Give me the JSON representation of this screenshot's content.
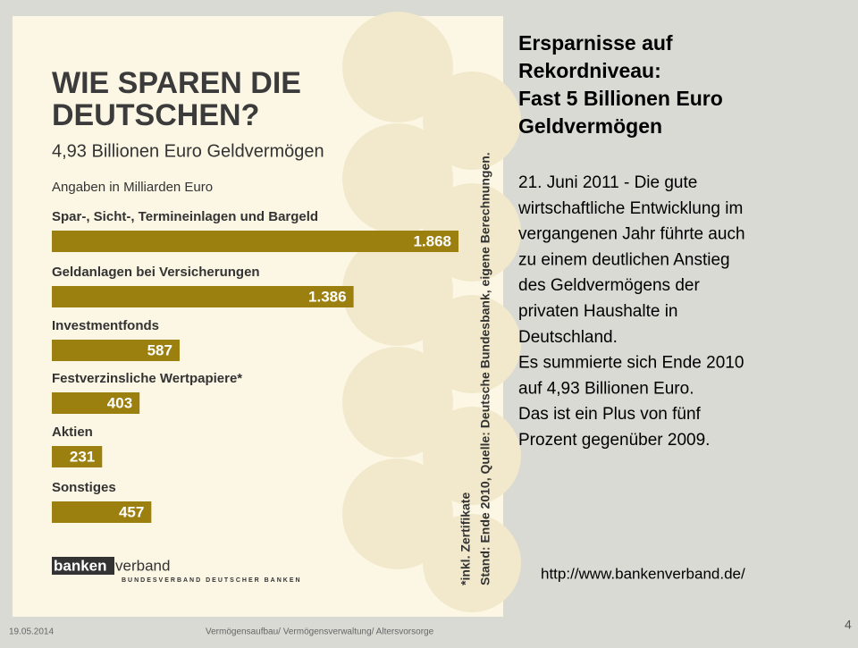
{
  "chart_data": {
    "type": "bar",
    "title": [
      "WIE SPAREN DIE",
      "DEUTSCHEN?"
    ],
    "subtitle": "4,93 Billionen Euro Geldvermögen",
    "unit_note": "Angaben in Milliarden Euro",
    "categories": [
      "Spar-, Sicht-, Termineinlagen und Bargeld",
      "Geldanlagen bei Versicherungen",
      "Investmentfonds",
      "Festverzinsliche Wertpapiere*",
      "Aktien",
      "Sonstiges"
    ],
    "values": [
      1868,
      1386,
      587,
      403,
      231,
      457
    ],
    "value_labels": [
      "1.868",
      "1.386",
      "587",
      "403",
      "231",
      "457"
    ],
    "color": "#9c800f",
    "notes": [
      "*inkl. Zertifikate",
      "Stand: Ende 2010, Quelle: Deutsche Bundesbank, eigene Berechnungen."
    ],
    "logo": {
      "bold": "banken",
      "rest": "verband",
      "tagline": "BUNDESVERBAND DEUTSCHER BANKEN"
    }
  },
  "slide": {
    "heading": [
      "Ersparnisse auf",
      "Rekordniveau:",
      "Fast 5 Billionen Euro",
      "Geldvermögen"
    ],
    "body": [
      "21. Juni 2011 - Die gute",
      "wirtschaftliche Entwicklung im",
      "vergangenen Jahr führte auch",
      "zu einem deutlichen Anstieg",
      "des Geldvermögens der",
      "privaten Haushalte in",
      "Deutschland.",
      "Es summierte sich Ende 2010",
      "auf 4,93 Billionen Euro.",
      "Das ist ein Plus von fünf",
      "Prozent gegenüber 2009."
    ],
    "url": "http://www.bankenverband.de/",
    "footer_date": "19.05.2014",
    "footer_text": "Vermögensaufbau/ Vermögensverwaltung/ Altersvorsorge",
    "page_number": "4"
  }
}
